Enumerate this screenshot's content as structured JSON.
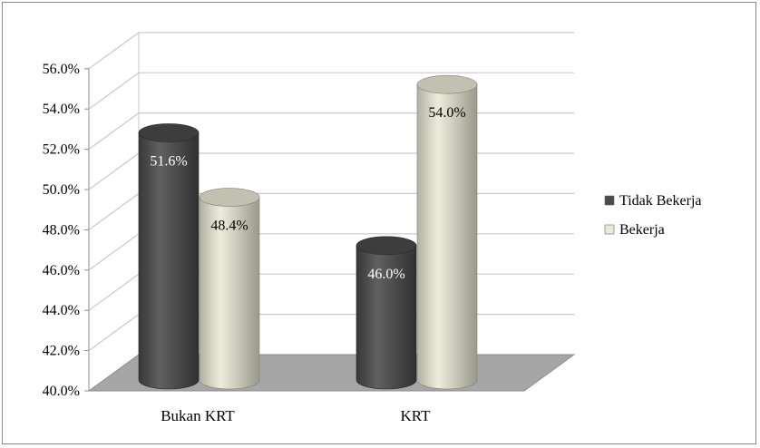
{
  "chart_data": {
    "type": "bar",
    "style": "3d-cylinder",
    "categories": [
      "Bukan KRT",
      "KRT"
    ],
    "series": [
      {
        "name": "Tidak Bekerja",
        "values": [
          51.6,
          46.0
        ],
        "color": "#4a4a4a",
        "label_color": "#ffffff"
      },
      {
        "name": "Bekerja",
        "values": [
          48.4,
          54.0
        ],
        "color": "#ecebd8",
        "label_color": "#000000"
      }
    ],
    "data_labels": [
      [
        "51.6%",
        "46.0%"
      ],
      [
        "48.4%",
        "54.0%"
      ]
    ],
    "ylim": [
      40,
      56
    ],
    "y_ticks": [
      "40.0%",
      "42.0%",
      "44.0%",
      "46.0%",
      "48.0%",
      "50.0%",
      "52.0%",
      "54.0%",
      "56.0%"
    ],
    "grid": true,
    "legend_position": "right",
    "floor_color": "#a6a6a6",
    "gridline_color": "#c8c8c8"
  }
}
